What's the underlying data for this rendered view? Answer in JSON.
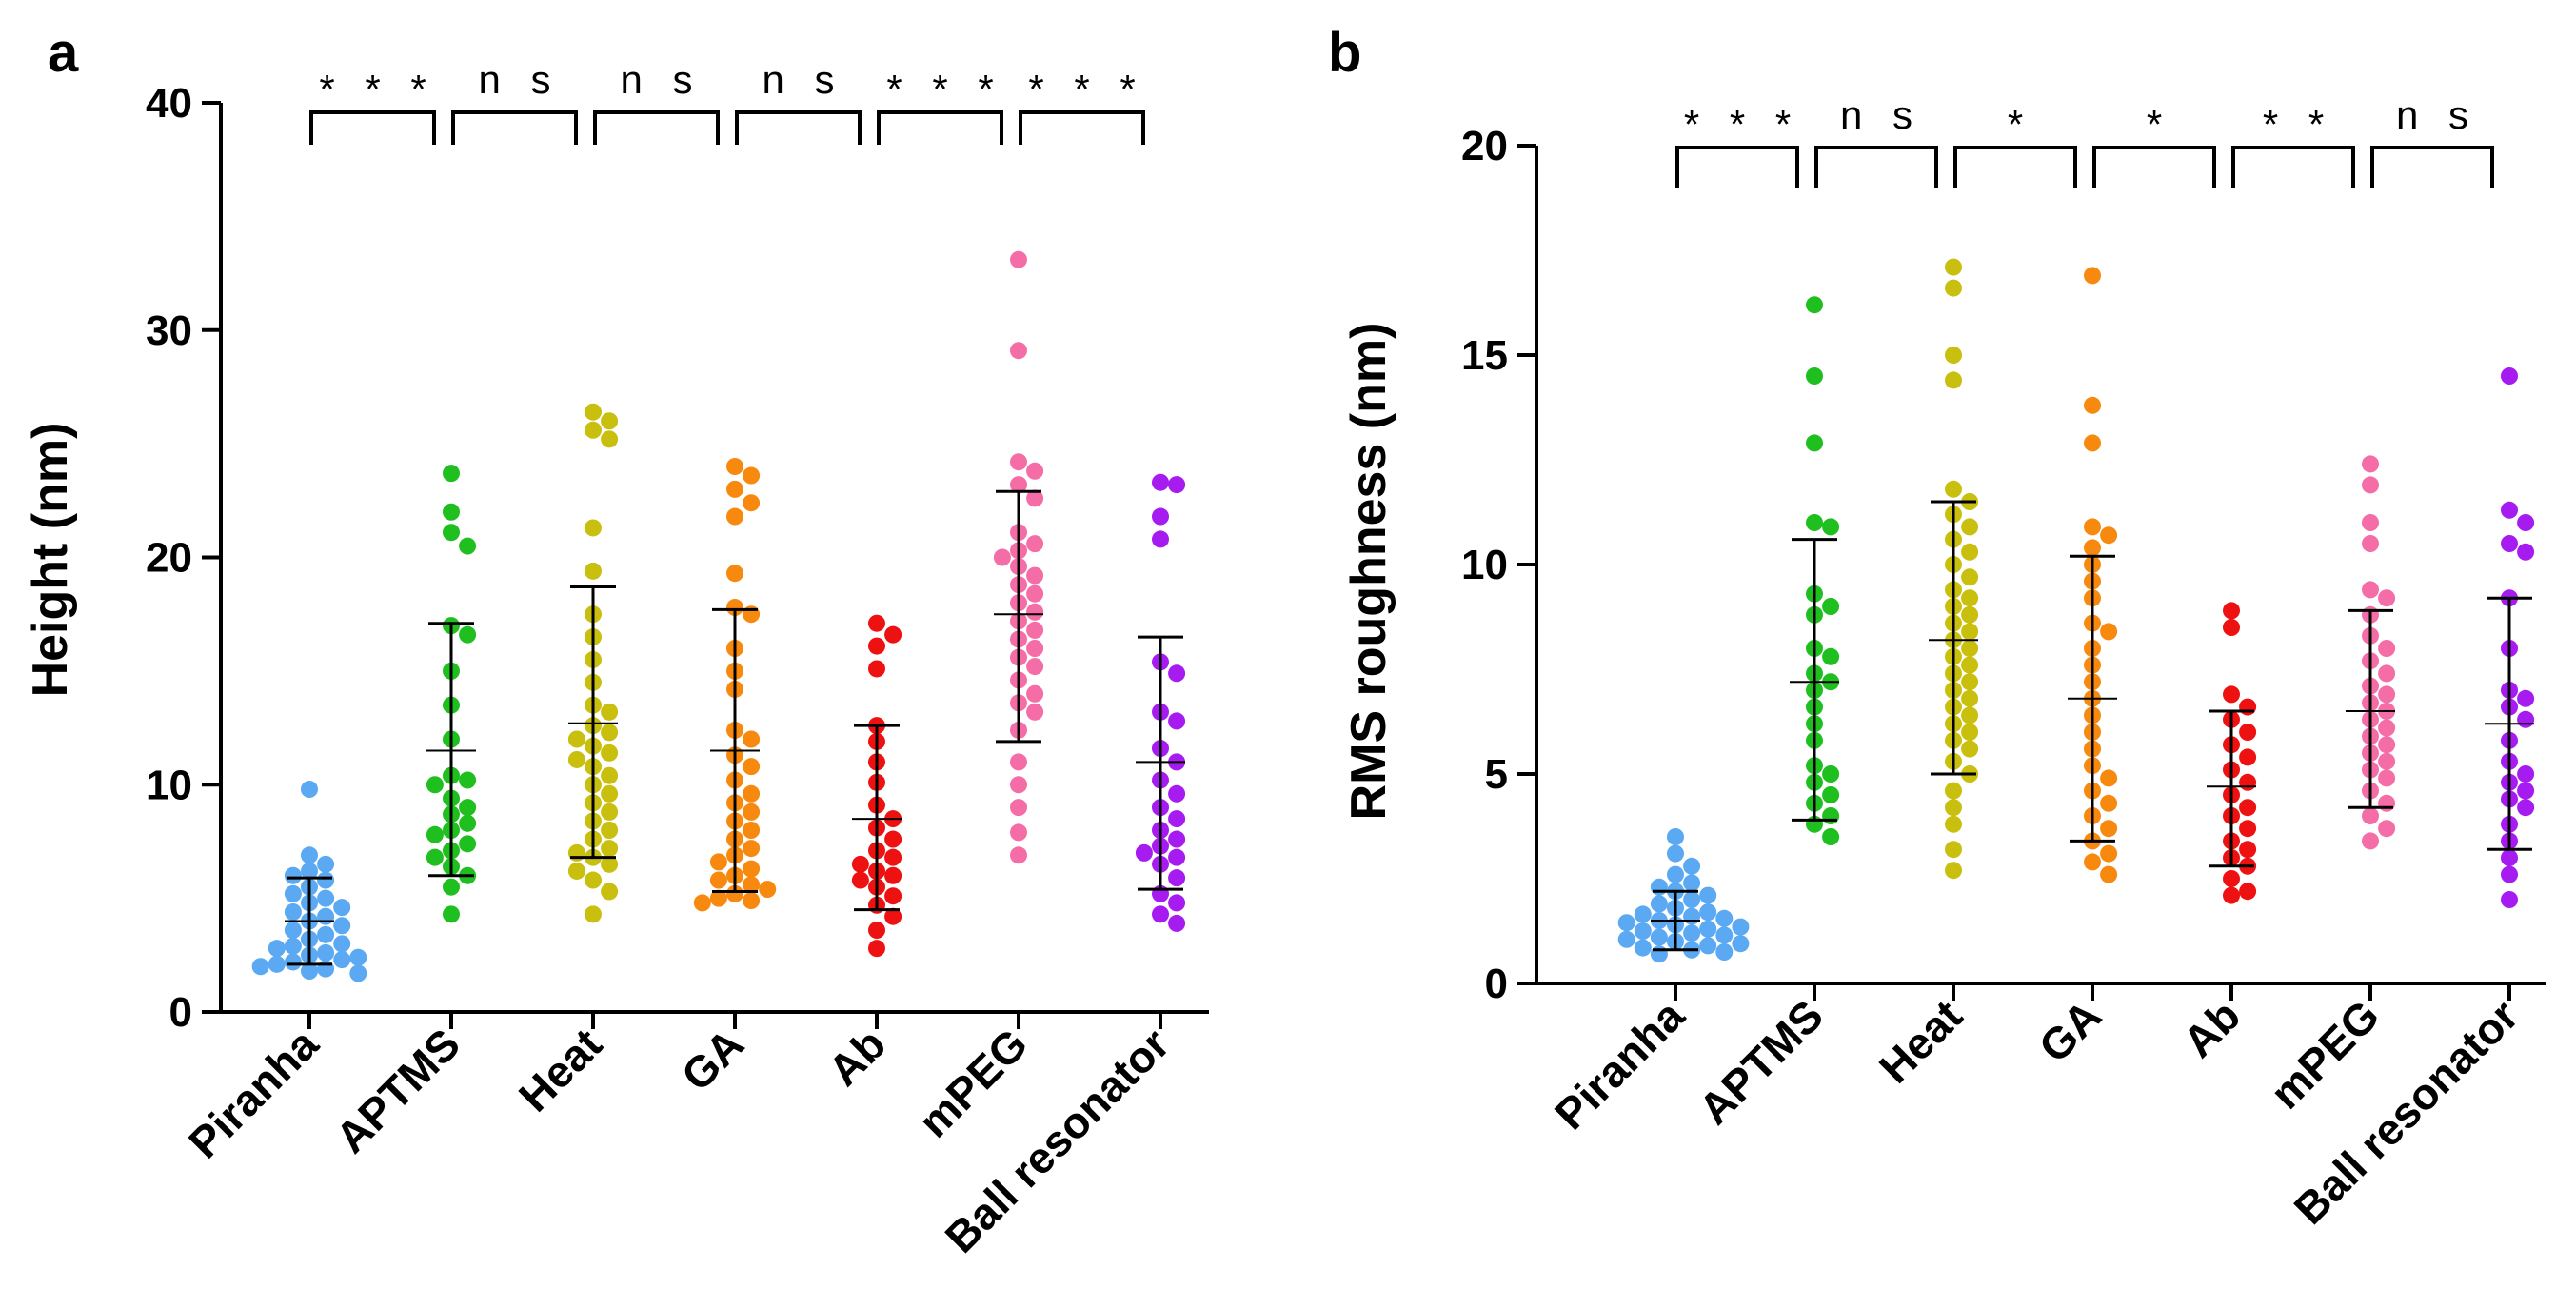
{
  "figure": {
    "panels": [
      "a",
      "b"
    ]
  },
  "chart_data": [
    {
      "type": "scatter",
      "style": "dot plot with mean and standard deviation error bars",
      "panel": "a",
      "title": "",
      "xlabel": "",
      "ylabel": "Height (nm)",
      "ylim": [
        0,
        40
      ],
      "yticks": [
        "0",
        "10",
        "20",
        "30",
        "40"
      ],
      "categories": [
        "Piranha",
        "APTMS",
        "Heat",
        "GA",
        "Ab",
        "mPEG",
        "Ball resonator"
      ],
      "colors": [
        "#5aa9f2",
        "#1fbf1f",
        "#c9bf0f",
        "#f7890f",
        "#ee1111",
        "#f56da7",
        "#a61cf0"
      ],
      "significance": [
        "***",
        "ns",
        "ns",
        "ns",
        "***",
        "***"
      ],
      "series": [
        {
          "name": "Piranha",
          "mean": 4.0,
          "sd_low": 2.1,
          "sd_high": 5.9,
          "values": [
            9.8,
            6.9,
            6.5,
            6.2,
            6.0,
            5.8,
            5.5,
            5.2,
            5.0,
            4.8,
            4.6,
            4.4,
            4.2,
            4.0,
            3.8,
            3.6,
            3.4,
            3.2,
            3.0,
            2.9,
            2.8,
            2.6,
            2.5,
            2.4,
            2.3,
            2.2,
            2.1,
            2.0,
            1.9,
            1.8,
            1.7
          ]
        },
        {
          "name": "APTMS",
          "mean": 11.5,
          "sd_low": 6.0,
          "sd_high": 17.1,
          "values": [
            23.7,
            22.0,
            21.1,
            20.5,
            17.0,
            16.6,
            15.0,
            13.5,
            12.0,
            10.4,
            10.2,
            10.0,
            9.4,
            9.0,
            8.7,
            8.3,
            8.0,
            7.8,
            7.4,
            7.1,
            6.8,
            6.4,
            6.0,
            5.5,
            4.3
          ]
        },
        {
          "name": "Heat",
          "mean": 12.7,
          "sd_low": 6.8,
          "sd_high": 18.7,
          "values": [
            26.4,
            26.0,
            25.6,
            25.2,
            21.3,
            19.4,
            17.5,
            16.5,
            15.5,
            14.5,
            13.5,
            13.2,
            12.6,
            12.3,
            12.0,
            11.7,
            11.4,
            11.1,
            10.8,
            10.4,
            10.0,
            9.6,
            9.2,
            8.8,
            8.4,
            8.0,
            7.6,
            7.2,
            7.0,
            6.8,
            6.5,
            6.2,
            5.8,
            5.3,
            4.3
          ]
        },
        {
          "name": "GA",
          "mean": 11.5,
          "sd_low": 5.3,
          "sd_high": 17.7,
          "values": [
            24.0,
            23.6,
            23.0,
            22.4,
            21.8,
            19.3,
            17.8,
            17.5,
            16.0,
            15.0,
            14.2,
            12.4,
            12.0,
            11.3,
            10.8,
            10.2,
            9.6,
            9.2,
            8.8,
            8.4,
            8.0,
            7.6,
            7.2,
            6.9,
            6.6,
            6.3,
            6.0,
            5.8,
            5.6,
            5.4,
            5.2,
            5.0,
            4.9,
            4.8
          ]
        },
        {
          "name": "Ab",
          "mean": 8.5,
          "sd_low": 4.5,
          "sd_high": 12.6,
          "values": [
            17.1,
            16.6,
            16.1,
            15.1,
            12.6,
            11.9,
            11.0,
            10.1,
            9.1,
            8.5,
            8.1,
            7.6,
            7.1,
            6.8,
            6.5,
            6.2,
            6.0,
            5.8,
            5.5,
            5.1,
            4.7,
            4.2,
            3.6,
            2.8
          ]
        },
        {
          "name": "mPEG",
          "mean": 17.5,
          "sd_low": 11.9,
          "sd_high": 22.9,
          "values": [
            33.1,
            29.1,
            24.2,
            23.8,
            23.2,
            22.6,
            21.1,
            20.6,
            20.3,
            20.0,
            19.6,
            19.2,
            18.8,
            18.4,
            18.0,
            17.6,
            17.2,
            16.8,
            16.4,
            16.0,
            15.6,
            15.2,
            14.6,
            14.0,
            13.6,
            13.2,
            12.4,
            11.0,
            10.0,
            9.0,
            7.9,
            6.9
          ]
        },
        {
          "name": "Ball resonator",
          "mean": 11.0,
          "sd_low": 5.4,
          "sd_high": 16.5,
          "values": [
            23.3,
            23.2,
            21.8,
            20.8,
            15.4,
            14.9,
            13.2,
            12.8,
            11.6,
            11.0,
            10.2,
            9.6,
            9.0,
            8.5,
            8.0,
            7.6,
            7.3,
            7.0,
            6.8,
            6.5,
            5.9,
            5.2,
            4.8,
            4.3,
            3.9
          ]
        }
      ]
    },
    {
      "type": "scatter",
      "style": "dot plot with mean and standard deviation error bars",
      "panel": "b",
      "title": "",
      "xlabel": "",
      "ylabel": "RMS roughness (nm)",
      "ylim": [
        0,
        20
      ],
      "yticks": [
        "0",
        "5",
        "10",
        "15",
        "20"
      ],
      "categories": [
        "Piranha",
        "APTMS",
        "Heat",
        "GA",
        "Ab",
        "mPEG",
        "Ball resonator"
      ],
      "colors": [
        "#5aa9f2",
        "#1fbf1f",
        "#c9bf0f",
        "#f7890f",
        "#ee1111",
        "#f56da7",
        "#a61cf0"
      ],
      "significance": [
        "***",
        "ns",
        "*",
        "*",
        "**",
        "ns"
      ],
      "series": [
        {
          "name": "Piranha",
          "mean": 1.5,
          "sd_low": 0.8,
          "sd_high": 2.2,
          "values": [
            3.5,
            3.1,
            2.8,
            2.6,
            2.4,
            2.3,
            2.2,
            2.1,
            2.0,
            1.9,
            1.8,
            1.7,
            1.65,
            1.6,
            1.55,
            1.5,
            1.45,
            1.4,
            1.35,
            1.3,
            1.25,
            1.2,
            1.15,
            1.1,
            1.05,
            1.0,
            0.95,
            0.9,
            0.85,
            0.8,
            0.75,
            0.7
          ]
        },
        {
          "name": "APTMS",
          "mean": 7.2,
          "sd_low": 3.9,
          "sd_high": 10.6,
          "values": [
            16.2,
            14.5,
            12.9,
            11.0,
            10.9,
            9.3,
            9.0,
            8.8,
            8.0,
            7.8,
            7.4,
            7.2,
            7.0,
            6.6,
            6.2,
            5.8,
            5.2,
            5.0,
            4.8,
            4.5,
            4.3,
            4.0,
            3.8,
            3.5
          ]
        },
        {
          "name": "Heat",
          "mean": 8.2,
          "sd_low": 5.0,
          "sd_high": 11.5,
          "values": [
            17.1,
            16.6,
            15.0,
            14.4,
            11.8,
            11.5,
            11.2,
            10.9,
            10.6,
            10.3,
            10.0,
            9.7,
            9.4,
            9.2,
            9.0,
            8.8,
            8.6,
            8.4,
            8.2,
            8.0,
            7.8,
            7.6,
            7.4,
            7.2,
            7.0,
            6.8,
            6.6,
            6.4,
            6.2,
            6.0,
            5.8,
            5.6,
            5.3,
            5.0,
            4.6,
            4.2,
            3.8,
            3.2,
            2.7
          ]
        },
        {
          "name": "GA",
          "mean": 6.8,
          "sd_low": 3.4,
          "sd_high": 10.2,
          "values": [
            16.9,
            13.8,
            12.9,
            10.9,
            10.7,
            10.4,
            10.0,
            9.6,
            9.2,
            8.6,
            8.4,
            8.0,
            7.6,
            7.2,
            6.8,
            6.4,
            6.0,
            5.6,
            5.2,
            4.9,
            4.6,
            4.3,
            4.0,
            3.7,
            3.4,
            3.1,
            2.9,
            2.6
          ]
        },
        {
          "name": "Ab",
          "mean": 4.7,
          "sd_low": 2.8,
          "sd_high": 6.5,
          "values": [
            8.9,
            8.5,
            6.9,
            6.6,
            6.3,
            6.0,
            5.7,
            5.4,
            5.1,
            4.8,
            4.5,
            4.2,
            4.0,
            3.7,
            3.4,
            3.2,
            3.0,
            2.8,
            2.5,
            2.2,
            2.1
          ]
        },
        {
          "name": "mPEG",
          "mean": 6.5,
          "sd_low": 4.2,
          "sd_high": 8.9,
          "values": [
            12.4,
            11.9,
            11.0,
            10.5,
            9.4,
            9.2,
            8.8,
            8.3,
            8.0,
            7.7,
            7.4,
            7.1,
            6.9,
            6.7,
            6.5,
            6.3,
            6.1,
            5.9,
            5.7,
            5.5,
            5.3,
            5.1,
            4.9,
            4.6,
            4.3,
            4.0,
            3.7,
            3.4
          ]
        },
        {
          "name": "Ball resonator",
          "mean": 6.2,
          "sd_low": 3.2,
          "sd_high": 9.2,
          "values": [
            14.5,
            11.3,
            11.0,
            10.5,
            10.3,
            9.2,
            8.0,
            7.0,
            6.8,
            6.6,
            6.3,
            5.8,
            5.3,
            5.0,
            4.8,
            4.6,
            4.4,
            4.2,
            3.8,
            3.4,
            3.0,
            2.6,
            2.0
          ]
        }
      ]
    }
  ]
}
